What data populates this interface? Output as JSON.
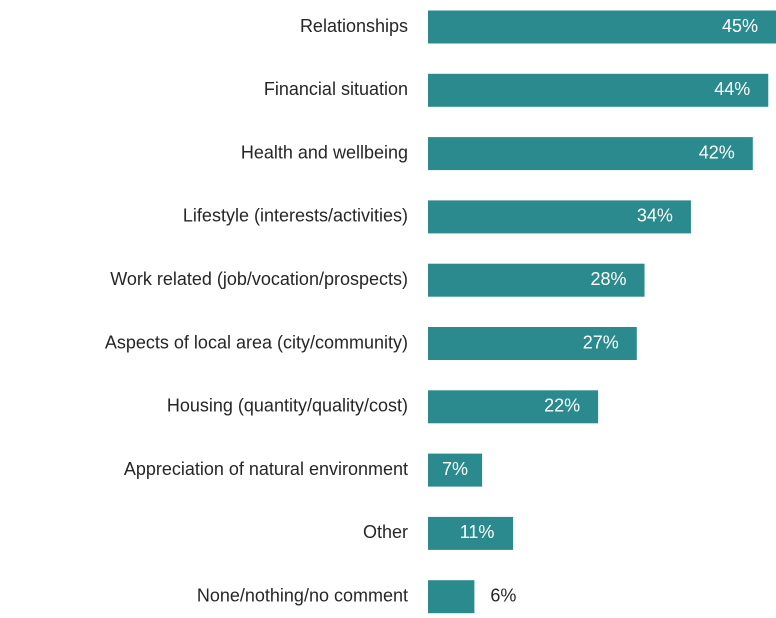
{
  "chart_data": {
    "type": "hbar",
    "categories": [
      "Relationships",
      "Financial situation",
      "Health and wellbeing",
      "Lifestyle (interests/activities)",
      "Work related (job/vocation/prospects)",
      "Aspects of local area (city/community)",
      "Housing (quantity/quality/cost)",
      "Appreciation of natural environment",
      "Other",
      "None/nothing/no comment"
    ],
    "values": [
      45,
      44,
      42,
      34,
      28,
      27,
      22,
      7,
      11,
      6
    ],
    "value_labels": [
      "45%",
      "44%",
      "42%",
      "34%",
      "28%",
      "27%",
      "22%",
      "7%",
      "11%",
      "6%"
    ],
    "color": "#2b8a8e"
  }
}
